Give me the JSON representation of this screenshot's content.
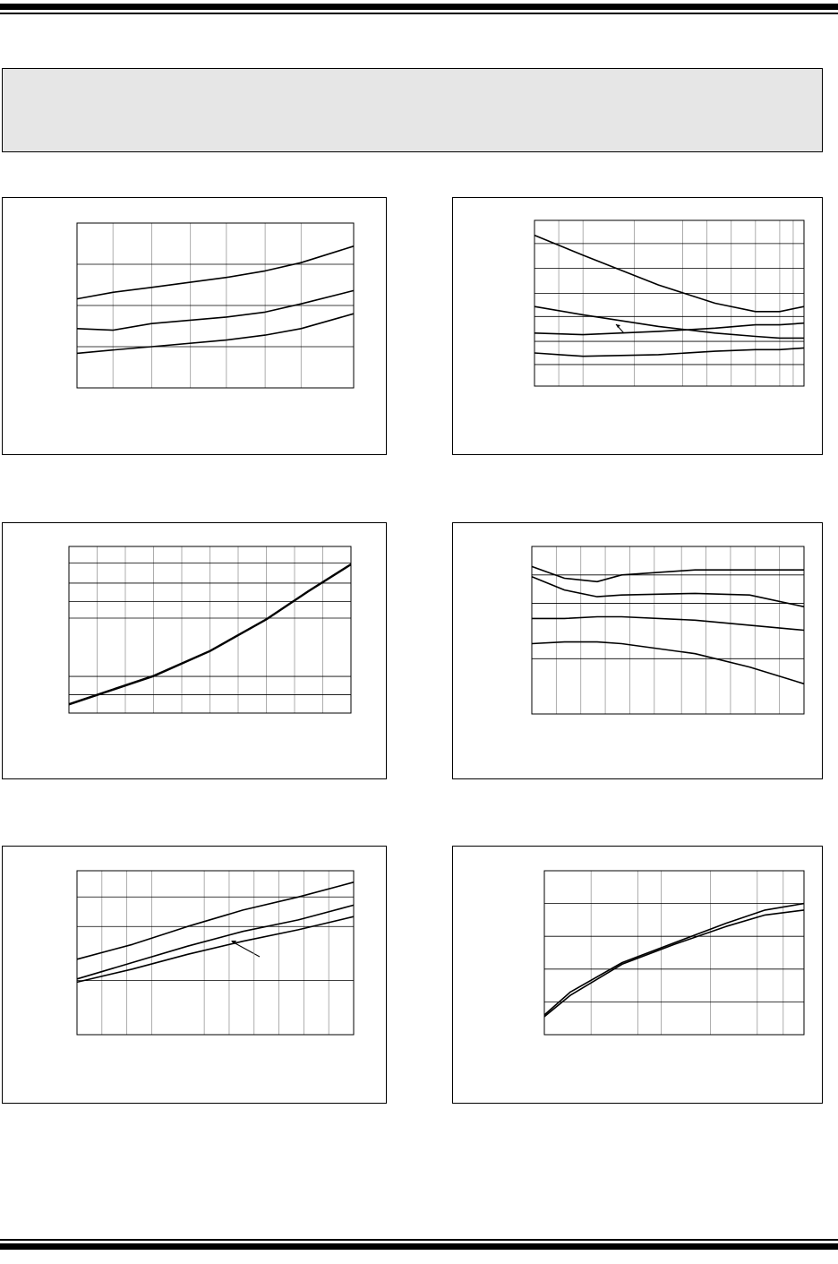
{
  "chart_data": [
    {
      "type": "line",
      "grid": true,
      "color": "#000000",
      "xlim": [
        0,
        100
      ],
      "ylim": [
        0,
        100
      ],
      "xticks": [
        13,
        27,
        41,
        54,
        68,
        81
      ],
      "yticks": [
        25,
        50,
        75
      ],
      "x": [
        0,
        13,
        27,
        54,
        68,
        81,
        100
      ],
      "series": [
        {
          "values": [
            54,
            58,
            61,
            67,
            71,
            76,
            86
          ]
        },
        {
          "values": [
            36,
            35,
            39,
            43,
            46,
            51,
            59
          ]
        },
        {
          "values": [
            21,
            23,
            25,
            29,
            32,
            36,
            45
          ]
        }
      ]
    },
    {
      "type": "line",
      "grid": true,
      "color": "#000000",
      "xlim": [
        0,
        100
      ],
      "ylim": [
        0,
        100
      ],
      "xticks": [
        9,
        18,
        37,
        55,
        64,
        73,
        82,
        91,
        96
      ],
      "yticks": [
        13,
        27,
        42,
        56,
        71,
        86
      ],
      "x": [
        0,
        18,
        46,
        67,
        82,
        91,
        100
      ],
      "series": [
        {
          "values": [
            91,
            79,
            61,
            50,
            45,
            45,
            48
          ]
        },
        {
          "values": [
            48,
            43,
            36,
            32,
            30,
            29,
            29
          ]
        },
        {
          "values": [
            32,
            31,
            33,
            35,
            37,
            37,
            38
          ]
        },
        {
          "values": [
            20,
            18,
            19,
            21,
            22,
            22,
            23
          ]
        }
      ]
    },
    {
      "type": "line",
      "grid": true,
      "color": "#000000",
      "xlim": [
        0,
        100
      ],
      "ylim": [
        0,
        100
      ],
      "xticks": [
        10,
        20,
        30,
        40,
        50,
        60,
        70,
        80,
        90
      ],
      "yticks": [
        11,
        22,
        57,
        67,
        78,
        90
      ],
      "x": [
        0,
        30,
        50,
        70,
        85,
        100
      ],
      "series": [
        {
          "values": [
            5,
            22,
            37,
            56,
            73,
            89
          ]
        },
        {
          "values": [
            5.5,
            22.5,
            37.5,
            56.5,
            73.5,
            89.5
          ]
        }
      ]
    },
    {
      "type": "line",
      "grid": true,
      "color": "#000000",
      "xlim": [
        0,
        100
      ],
      "ylim": [
        0,
        100
      ],
      "xticks": [
        9,
        18,
        27,
        36,
        45,
        55,
        64,
        73,
        82,
        91
      ],
      "yticks": [
        33,
        66,
        83
      ],
      "x": [
        0,
        12,
        24,
        33,
        60,
        80,
        100
      ],
      "series": [
        {
          "values": [
            88,
            81,
            79,
            83,
            86,
            86,
            86
          ]
        },
        {
          "values": [
            82,
            74,
            70,
            71,
            72,
            71,
            64
          ]
        },
        {
          "values": [
            57,
            57,
            58,
            58,
            56,
            53,
            50
          ]
        },
        {
          "values": [
            42,
            43,
            43,
            42,
            36,
            28,
            18
          ]
        }
      ]
    },
    {
      "type": "line",
      "grid": true,
      "color": "#000000",
      "xlim": [
        0,
        100
      ],
      "ylim": [
        0,
        100
      ],
      "xticks": [
        9,
        18,
        27,
        46,
        55,
        64,
        73,
        82,
        91
      ],
      "yticks": [
        33,
        66,
        84
      ],
      "x": [
        0,
        20,
        40,
        60,
        80,
        100
      ],
      "series": [
        {
          "values": [
            46,
            55,
            66,
            76,
            84,
            93
          ]
        },
        {
          "values": [
            34,
            44,
            54,
            63,
            70,
            79
          ]
        },
        {
          "values": [
            32,
            40,
            49,
            57,
            64,
            72
          ]
        }
      ]
    },
    {
      "type": "line",
      "grid": true,
      "color": "#000000",
      "xlim": [
        0,
        100
      ],
      "ylim": [
        0,
        100
      ],
      "xticks": [
        18,
        36,
        45,
        64,
        82,
        92
      ],
      "yticks": [
        20,
        40,
        60,
        80
      ],
      "x": [
        0,
        10,
        30,
        50,
        70,
        85,
        100
      ],
      "series": [
        {
          "values": [
            12,
            26,
            44,
            56,
            68,
            76,
            80
          ]
        },
        {
          "values": [
            11,
            24,
            43,
            55,
            66,
            73,
            76
          ]
        }
      ]
    }
  ]
}
